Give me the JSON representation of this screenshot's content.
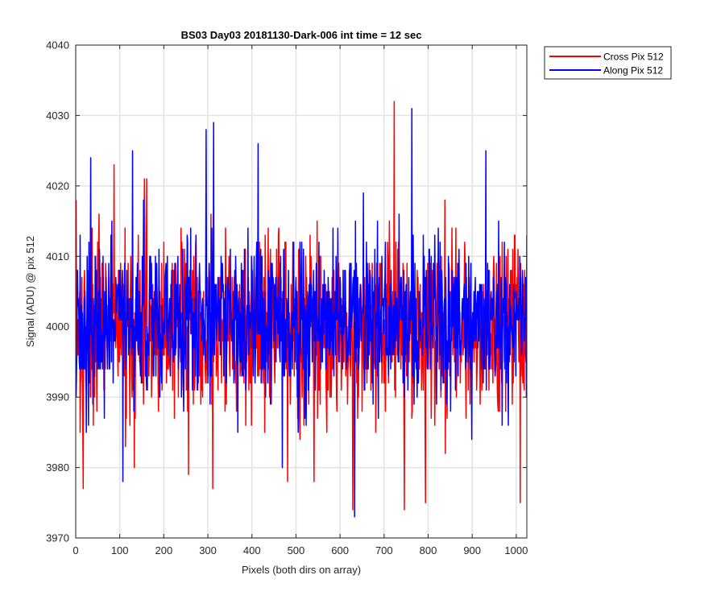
{
  "chart_data": {
    "type": "line",
    "title": "BS03 Day03 20181130-Dark-006 int time = 12 sec",
    "xlabel": "Pixels (both dirs on array)",
    "ylabel": "Signal (ADU) @ pix 512",
    "xlim": [
      0,
      1024
    ],
    "ylim": [
      3970,
      4040
    ],
    "xticks": [
      0,
      100,
      200,
      300,
      400,
      500,
      600,
      700,
      800,
      900,
      1000
    ],
    "yticks": [
      3970,
      3980,
      3990,
      4000,
      4010,
      4020,
      4030,
      4040
    ],
    "grid": true,
    "legend_position": "outside-top-right",
    "series": [
      {
        "name": "Cross Pix 512",
        "color": "#ff0000",
        "noise": {
          "points": 1024,
          "mean": 4000,
          "std": 6.5,
          "seed": 17
        },
        "peaks": [
          [
            0,
            4018
          ],
          [
            16,
            3977
          ],
          [
            86,
            4023
          ],
          [
            132,
            3980
          ],
          [
            155,
            4021
          ],
          [
            160,
            4021
          ],
          [
            255,
            3979
          ],
          [
            310,
            3977
          ],
          [
            480,
            3978
          ],
          [
            540,
            3978
          ],
          [
            628,
            3974
          ],
          [
            722,
            4032
          ],
          [
            745,
            3974
          ],
          [
            793,
            3975
          ],
          [
            1008,
            3975
          ]
        ]
      },
      {
        "name": "Along Pix 512",
        "color": "#0000ff",
        "noise": {
          "points": 1024,
          "mean": 4001,
          "std": 6,
          "seed": 91
        },
        "peaks": [
          [
            33,
            4024
          ],
          [
            106,
            3978
          ],
          [
            128,
            4025
          ],
          [
            295,
            4028
          ],
          [
            312,
            4029
          ],
          [
            413,
            4026
          ],
          [
            468,
            3980
          ],
          [
            632,
            3973
          ],
          [
            762,
            4031
          ],
          [
            790,
            4010
          ],
          [
            930,
            4025
          ]
        ]
      }
    ]
  }
}
